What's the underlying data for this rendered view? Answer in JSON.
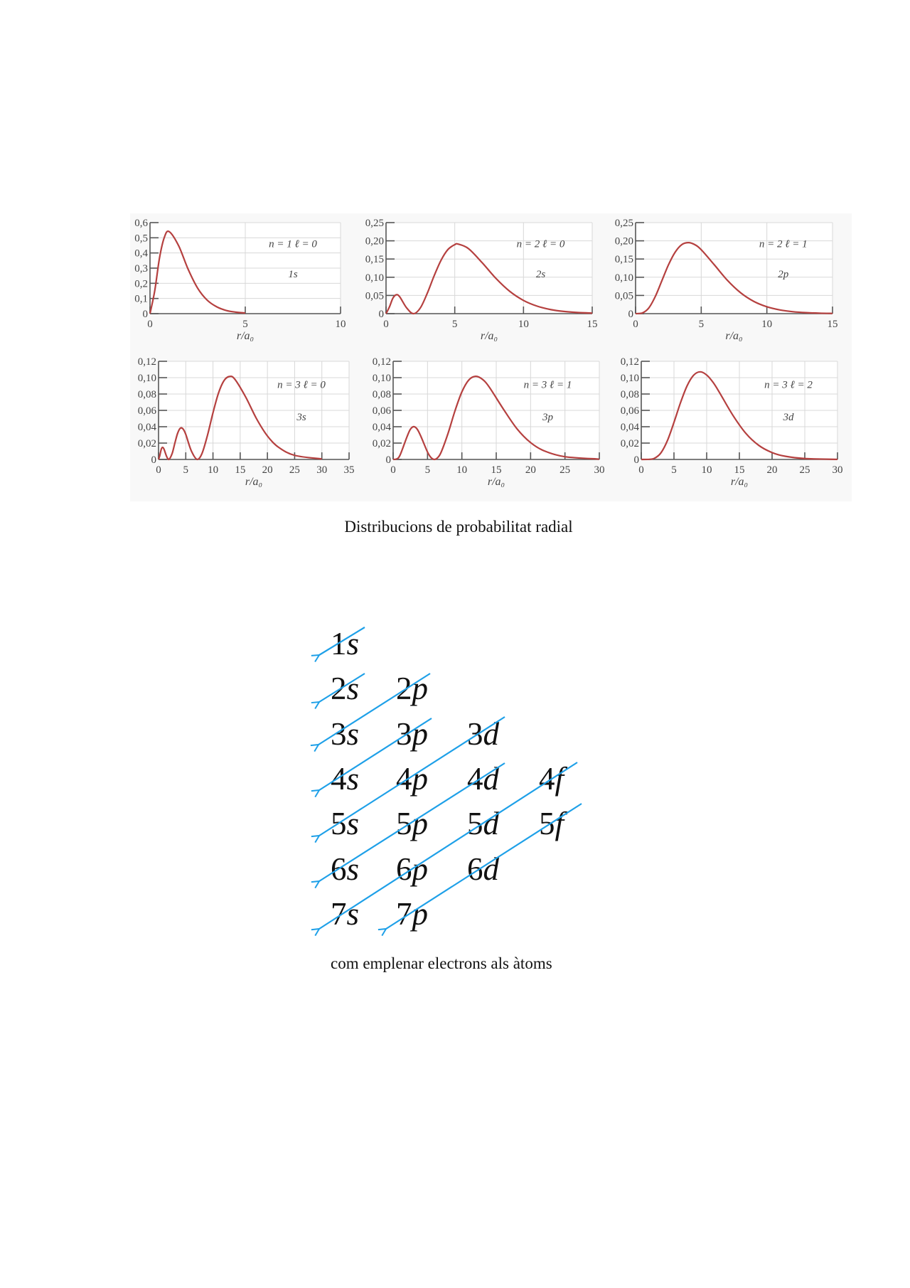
{
  "figure_caption": "Distribucions de probabilitat radial",
  "diagram_caption": "com emplenar electrons als àtoms",
  "colors": {
    "curve": "#b5403f",
    "grid": "#d8d8d8",
    "axis": "#555555",
    "arrow": "#1ea0e8",
    "figure_bg": "#f8f8f8"
  },
  "chart_data": [
    {
      "type": "line",
      "annotation": "n = 1   ℓ = 0",
      "orbital": "1s",
      "xlabel": "r/a₀",
      "xlim": [
        0,
        10
      ],
      "ylim": [
        0,
        0.6
      ],
      "xticks": [
        0,
        5,
        10
      ],
      "xtick_labels": [
        "0",
        "5",
        "10"
      ],
      "yticks": [
        0,
        0.1,
        0.2,
        0.3,
        0.4,
        0.5,
        0.6
      ],
      "ytick_labels": [
        "0",
        "0,1",
        "0,2",
        "0,3",
        "0,4",
        "0,5",
        "0,6"
      ],
      "grid": true,
      "x": [
        0,
        0.25,
        0.5,
        0.75,
        1,
        1.5,
        2,
        2.5,
        3,
        3.5,
        4,
        4.5,
        5
      ],
      "y": [
        0,
        0.152,
        0.368,
        0.502,
        0.541,
        0.448,
        0.293,
        0.168,
        0.089,
        0.045,
        0.021,
        0.01,
        0.0045
      ]
    },
    {
      "type": "line",
      "annotation": "n = 2   ℓ = 0",
      "orbital": "2s",
      "xlabel": "r/a₀",
      "xlim": [
        0,
        15
      ],
      "ylim": [
        0,
        0.25
      ],
      "xticks": [
        0,
        5,
        10,
        15
      ],
      "xtick_labels": [
        "0",
        "5",
        "10",
        "15"
      ],
      "yticks": [
        0,
        0.05,
        0.1,
        0.15,
        0.2,
        0.25
      ],
      "ytick_labels": [
        "0",
        "0,05",
        "0,10",
        "0,15",
        "0,20",
        "0,25"
      ],
      "grid": true,
      "x": [
        0,
        0.25,
        0.5,
        0.76,
        1,
        1.5,
        2,
        2.5,
        3,
        3.5,
        4,
        4.5,
        5,
        5.24,
        6,
        7,
        8,
        9,
        10,
        11,
        12,
        13,
        14,
        15
      ],
      "y": [
        0,
        0.0186,
        0.0426,
        0.052,
        0.046,
        0.0157,
        0,
        0.016,
        0.056,
        0.104,
        0.1465,
        0.176,
        0.1895,
        0.191,
        0.1785,
        0.1396,
        0.0966,
        0.0612,
        0.0363,
        0.0205,
        0.011,
        0.0058,
        0.0029,
        0.0015
      ]
    },
    {
      "type": "line",
      "annotation": "n = 2   ℓ = 1",
      "orbital": "2p",
      "xlabel": "r/a₀",
      "xlim": [
        0,
        15
      ],
      "ylim": [
        0,
        0.25
      ],
      "xticks": [
        0,
        5,
        10,
        15
      ],
      "xtick_labels": [
        "0",
        "5",
        "10",
        "15"
      ],
      "yticks": [
        0,
        0.05,
        0.1,
        0.15,
        0.2,
        0.25
      ],
      "ytick_labels": [
        "0",
        "0,05",
        "0,10",
        "0,15",
        "0,20",
        "0,25"
      ],
      "grid": true,
      "x": [
        0,
        0.5,
        1,
        1.5,
        2,
        2.5,
        3,
        3.5,
        4,
        4.5,
        5,
        6,
        7,
        8,
        9,
        10,
        11,
        12,
        13,
        14,
        15
      ],
      "y": [
        0,
        0.0016,
        0.0153,
        0.047,
        0.0902,
        0.1336,
        0.168,
        0.189,
        0.195,
        0.1897,
        0.1755,
        0.134,
        0.0912,
        0.0573,
        0.0337,
        0.0189,
        0.0102,
        0.0053,
        0.0027,
        0.0013,
        0.0006
      ]
    },
    {
      "type": "line",
      "annotation": "n = 3   ℓ = 0",
      "orbital": "3s",
      "xlabel": "r/a₀",
      "xlim": [
        0,
        35
      ],
      "ylim": [
        0,
        0.12
      ],
      "xticks": [
        0,
        5,
        10,
        15,
        20,
        25,
        30,
        35
      ],
      "xtick_labels": [
        "0",
        "5",
        "10",
        "15",
        "20",
        "25",
        "30",
        "35"
      ],
      "yticks": [
        0,
        0.02,
        0.04,
        0.06,
        0.08,
        0.1,
        0.12
      ],
      "ytick_labels": [
        "0",
        "0,02",
        "0,04",
        "0,06",
        "0,08",
        "0,10",
        "0,12"
      ],
      "grid": true,
      "x": [
        0,
        0.2,
        0.5,
        0.74,
        1,
        1.5,
        1.9,
        2.5,
        3,
        3.5,
        4,
        4.5,
        5,
        6,
        7.1,
        8,
        9,
        10,
        11,
        12,
        13,
        14,
        16,
        18,
        20,
        22,
        25,
        30
      ],
      "y": [
        0,
        0.0039,
        0.01245,
        0.01484,
        0.01262,
        0.0034,
        0,
        0.00726,
        0.02,
        0.0319,
        0.0382,
        0.0373,
        0.0307,
        0.01085,
        0,
        0.0076,
        0.0298,
        0.057,
        0.0809,
        0.0961,
        0.1014,
        0.0982,
        0.0764,
        0.0498,
        0.0287,
        0.0151,
        0.005,
        0.0006
      ]
    },
    {
      "type": "line",
      "annotation": "n = 3   ℓ = 1",
      "orbital": "3p",
      "xlabel": "r/a₀",
      "xlim": [
        0,
        30
      ],
      "ylim": [
        0,
        0.12
      ],
      "xticks": [
        0,
        5,
        10,
        15,
        20,
        25,
        30
      ],
      "xtick_labels": [
        "0",
        "5",
        "10",
        "15",
        "20",
        "25",
        "30"
      ],
      "yticks": [
        0,
        0.02,
        0.04,
        0.06,
        0.08,
        0.1,
        0.12
      ],
      "ytick_labels": [
        "0",
        "0,02",
        "0,04",
        "0,06",
        "0,08",
        "0,10",
        "0,12"
      ],
      "grid": true,
      "x": [
        0,
        0.5,
        1,
        2,
        2.5,
        3,
        3.5,
        4,
        5,
        5.5,
        6,
        6.5,
        7,
        8,
        9,
        10,
        11,
        12,
        13,
        14,
        16,
        18,
        20,
        22,
        25,
        30
      ],
      "y": [
        0,
        0.00055,
        0.0052,
        0.0274,
        0.0368,
        0.0401,
        0.037,
        0.0289,
        0.00907,
        0.0024,
        0,
        0.0024,
        0.0092,
        0.0322,
        0.0595,
        0.0826,
        0.0971,
        0.1016,
        0.0979,
        0.0883,
        0.0621,
        0.0377,
        0.0206,
        0.0104,
        0.0033,
        0.0004
      ]
    },
    {
      "type": "line",
      "annotation": "n = 3   ℓ = 2",
      "orbital": "3d",
      "xlabel": "r/a₀",
      "xlim": [
        0,
        30
      ],
      "ylim": [
        0,
        0.12
      ],
      "xticks": [
        0,
        5,
        10,
        15,
        20,
        25,
        30
      ],
      "xtick_labels": [
        "0",
        "5",
        "10",
        "15",
        "20",
        "25",
        "30"
      ],
      "yticks": [
        0,
        0.02,
        0.04,
        0.06,
        0.08,
        0.1,
        0.12
      ],
      "ytick_labels": [
        "0",
        "0,02",
        "0,04",
        "0,06",
        "0,08",
        "0,10",
        "0,12"
      ],
      "grid": true,
      "x": [
        0,
        1,
        2,
        3,
        4,
        5,
        6,
        7,
        8,
        9,
        10,
        11,
        12,
        14,
        16,
        18,
        20,
        22,
        25,
        30
      ],
      "y": [
        0,
        4e-05,
        0.00137,
        0.008,
        0.0231,
        0.0453,
        0.0694,
        0.0899,
        0.1029,
        0.1071,
        0.1032,
        0.094,
        0.0813,
        0.0541,
        0.0318,
        0.017,
        0.0084,
        0.0039,
        0.0011,
        0.0001
      ]
    }
  ],
  "orbital_rows": [
    [
      {
        "n": "1",
        "l": "s"
      }
    ],
    [
      {
        "n": "2",
        "l": "s"
      },
      {
        "n": "2",
        "l": "p"
      }
    ],
    [
      {
        "n": "3",
        "l": "s"
      },
      {
        "n": "3",
        "l": "p"
      },
      {
        "n": "3",
        "l": "d"
      }
    ],
    [
      {
        "n": "4",
        "l": "s"
      },
      {
        "n": "4",
        "l": "p"
      },
      {
        "n": "4",
        "l": "d"
      },
      {
        "n": "4",
        "l": "f"
      }
    ],
    [
      {
        "n": "5",
        "l": "s"
      },
      {
        "n": "5",
        "l": "p"
      },
      {
        "n": "5",
        "l": "d"
      },
      {
        "n": "5",
        "l": "f"
      }
    ],
    [
      {
        "n": "6",
        "l": "s"
      },
      {
        "n": "6",
        "l": "p"
      },
      {
        "n": "6",
        "l": "d"
      }
    ],
    [
      {
        "n": "7",
        "l": "s"
      },
      {
        "n": "7",
        "l": "p"
      }
    ]
  ]
}
